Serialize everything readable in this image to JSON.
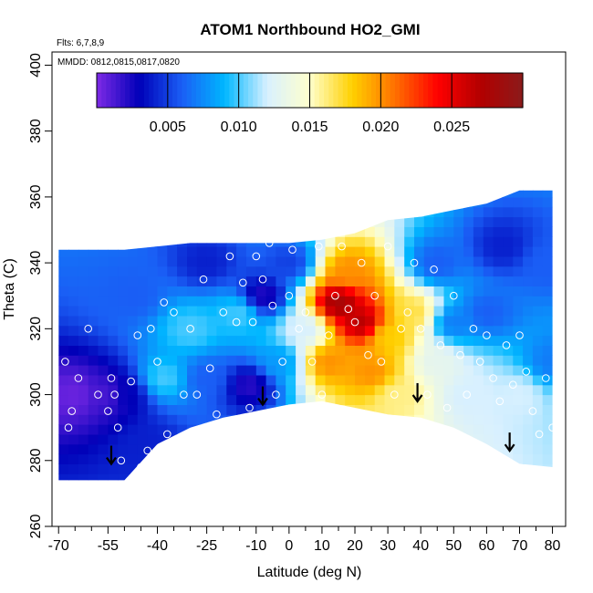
{
  "chart_data": {
    "type": "heatmap",
    "title": "ATOM1 Northbound HO2_GMI",
    "notes": {
      "flights": "Flts: 6,7,8,9",
      "dates": "MMDD: 0812,0815,0817,0820"
    },
    "xlabel": "Latitude (deg N)",
    "ylabel": "Theta (C)",
    "xlim": [
      -72,
      84
    ],
    "ylim": [
      260,
      404
    ],
    "x_major_ticks": [
      -70,
      -55,
      -40,
      -25,
      -10,
      0,
      10,
      20,
      30,
      40,
      50,
      60,
      70,
      80
    ],
    "x_minor_ticks": [
      -65,
      -60,
      -50,
      -45,
      -35,
      -30,
      -20,
      -15,
      -5,
      5,
      15,
      25,
      35,
      45,
      55,
      65,
      75
    ],
    "y_ticks": [
      260,
      280,
      300,
      320,
      340,
      360,
      380,
      400
    ],
    "colorbar": {
      "min": 0.0,
      "max": 0.03,
      "ticks": [
        0.005,
        0.01,
        0.015,
        0.02,
        0.025
      ],
      "tick_labels": [
        "0.005",
        "0.010",
        "0.015",
        "0.020",
        "0.025"
      ],
      "placement": "top, inside plot",
      "colors": [
        "#7e2ae6",
        "#0000b8",
        "#1a5ef5",
        "#00b7ff",
        "#d8f0ff",
        "#ffffcc",
        "#ffd000",
        "#ff7000",
        "#ff0000",
        "#b30000",
        "#8b1a1a"
      ]
    },
    "field": {
      "x": [
        -70,
        -60,
        -50,
        -40,
        -30,
        -20,
        -10,
        0,
        10,
        20,
        30,
        40,
        50,
        60,
        70,
        80
      ],
      "theta_bottom": [
        274,
        274,
        274,
        285,
        290,
        293,
        295,
        297,
        298,
        296,
        294,
        293,
        290,
        285,
        279,
        278
      ],
      "theta_top": [
        344,
        344,
        344,
        345,
        346,
        346,
        346,
        346,
        347,
        349,
        353,
        354,
        356,
        358,
        362,
        362
      ],
      "centers": [
        {
          "lat": -65,
          "theta": 300,
          "value": 0.0005
        },
        {
          "lat": -55,
          "theta": 300,
          "value": 0.0012
        },
        {
          "lat": -50,
          "theta": 300,
          "value": 0.003
        },
        {
          "lat": -47,
          "theta": 330,
          "value": 0.006
        },
        {
          "lat": -43,
          "theta": 285,
          "value": 0.004
        },
        {
          "lat": -38,
          "theta": 305,
          "value": 0.01
        },
        {
          "lat": -30,
          "theta": 320,
          "value": 0.01
        },
        {
          "lat": -25,
          "theta": 305,
          "value": 0.006
        },
        {
          "lat": -25,
          "theta": 340,
          "value": 0.004
        },
        {
          "lat": -15,
          "theta": 325,
          "value": 0.01
        },
        {
          "lat": -12,
          "theta": 303,
          "value": 0.002
        },
        {
          "lat": -8,
          "theta": 330,
          "value": 0.002
        },
        {
          "lat": -3,
          "theta": 310,
          "value": 0.008
        },
        {
          "lat": 0,
          "theta": 340,
          "value": 0.005
        },
        {
          "lat": 5,
          "theta": 320,
          "value": 0.012
        },
        {
          "lat": 12,
          "theta": 310,
          "value": 0.02
        },
        {
          "lat": 15,
          "theta": 328,
          "value": 0.028
        },
        {
          "lat": 18,
          "theta": 337,
          "value": 0.02
        },
        {
          "lat": 22,
          "theta": 322,
          "value": 0.027
        },
        {
          "lat": 25,
          "theta": 307,
          "value": 0.02
        },
        {
          "lat": 30,
          "theta": 318,
          "value": 0.018
        },
        {
          "lat": 33,
          "theta": 300,
          "value": 0.016
        },
        {
          "lat": 38,
          "theta": 325,
          "value": 0.017
        },
        {
          "lat": 45,
          "theta": 310,
          "value": 0.013
        },
        {
          "lat": 45,
          "theta": 340,
          "value": 0.006
        },
        {
          "lat": 50,
          "theta": 322,
          "value": 0.007
        },
        {
          "lat": 55,
          "theta": 300,
          "value": 0.012
        },
        {
          "lat": 60,
          "theta": 325,
          "value": 0.006
        },
        {
          "lat": 65,
          "theta": 345,
          "value": 0.004
        },
        {
          "lat": 70,
          "theta": 300,
          "value": 0.012
        },
        {
          "lat": 78,
          "theta": 340,
          "value": 0.006
        },
        {
          "lat": 80,
          "theta": 310,
          "value": 0.007
        }
      ]
    },
    "observations": [
      [
        -68,
        310
      ],
      [
        -67,
        290
      ],
      [
        -66,
        295
      ],
      [
        -64,
        305
      ],
      [
        -61,
        320
      ],
      [
        -58,
        300
      ],
      [
        -55,
        295
      ],
      [
        -54,
        305
      ],
      [
        -53,
        300
      ],
      [
        -52,
        290
      ],
      [
        -51,
        280
      ],
      [
        -48,
        304
      ],
      [
        -46,
        318
      ],
      [
        -45,
        278
      ],
      [
        -43,
        283
      ],
      [
        -42,
        320
      ],
      [
        -40,
        310
      ],
      [
        -38,
        328
      ],
      [
        -37,
        288
      ],
      [
        -35,
        325
      ],
      [
        -32,
        300
      ],
      [
        -30,
        320
      ],
      [
        -28,
        300
      ],
      [
        -26,
        335
      ],
      [
        -24,
        308
      ],
      [
        -22,
        294
      ],
      [
        -20,
        325
      ],
      [
        -18,
        342
      ],
      [
        -16,
        322
      ],
      [
        -14,
        334
      ],
      [
        -12,
        296
      ],
      [
        -11,
        322
      ],
      [
        -10,
        342
      ],
      [
        -8,
        335
      ],
      [
        -6,
        346
      ],
      [
        -5,
        327
      ],
      [
        -4,
        300
      ],
      [
        -2,
        310
      ],
      [
        0,
        330
      ],
      [
        1,
        344
      ],
      [
        3,
        320
      ],
      [
        5,
        325
      ],
      [
        7,
        310
      ],
      [
        9,
        345
      ],
      [
        10,
        300
      ],
      [
        12,
        318
      ],
      [
        14,
        330
      ],
      [
        16,
        345
      ],
      [
        18,
        326
      ],
      [
        20,
        322
      ],
      [
        22,
        340
      ],
      [
        24,
        312
      ],
      [
        26,
        330
      ],
      [
        28,
        310
      ],
      [
        30,
        345
      ],
      [
        32,
        300
      ],
      [
        34,
        320
      ],
      [
        36,
        325
      ],
      [
        38,
        340
      ],
      [
        40,
        320
      ],
      [
        42,
        300
      ],
      [
        44,
        338
      ],
      [
        46,
        315
      ],
      [
        48,
        296
      ],
      [
        50,
        330
      ],
      [
        52,
        312
      ],
      [
        54,
        300
      ],
      [
        56,
        320
      ],
      [
        58,
        310
      ],
      [
        60,
        318
      ],
      [
        62,
        305
      ],
      [
        64,
        298
      ],
      [
        66,
        315
      ],
      [
        68,
        303
      ],
      [
        70,
        318
      ],
      [
        72,
        307
      ],
      [
        74,
        295
      ],
      [
        76,
        288
      ],
      [
        78,
        305
      ],
      [
        80,
        290
      ],
      [
        82,
        277
      ]
    ],
    "arrows": [
      {
        "lat": -54,
        "theta": 282
      },
      {
        "lat": -8,
        "theta": 300
      },
      {
        "lat": 39,
        "theta": 301
      },
      {
        "lat": 67,
        "theta": 286
      }
    ]
  }
}
